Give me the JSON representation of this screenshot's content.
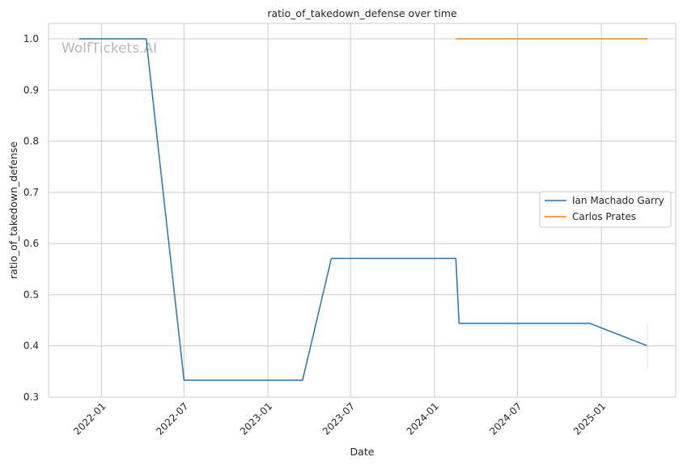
{
  "chart_data": {
    "type": "line",
    "title": "ratio_of_takedown_defense over time",
    "xlabel": "Date",
    "ylabel": "ratio_of_takedown_defense",
    "ylim": [
      0.3,
      1.03
    ],
    "xlim": [
      "2021-09-07",
      "2025-06-13"
    ],
    "grid": true,
    "legend_position": "center-right",
    "yticks": [
      0.3,
      0.4,
      0.5,
      0.6,
      0.7,
      0.8,
      0.9,
      1.0
    ],
    "ytick_labels": [
      "0.3",
      "0.4",
      "0.5",
      "0.6",
      "0.7",
      "0.8",
      "0.9",
      "1.0"
    ],
    "xticks": [
      "2022-01-01",
      "2022-07-01",
      "2023-01-01",
      "2023-07-01",
      "2024-01-01",
      "2024-07-01",
      "2025-01-01"
    ],
    "xtick_labels": [
      "2022-01",
      "2022-07",
      "2023-01",
      "2023-07",
      "2024-01",
      "2024-07",
      "2025-01"
    ],
    "series": [
      {
        "name": "Ian Machado Garry",
        "color": "#1f77b4",
        "x": [
          "2021-11-13",
          "2022-04-09",
          "2022-07-01",
          "2023-03-18",
          "2023-05-20",
          "2024-02-17",
          "2024-02-24",
          "2024-12-07",
          "2025-04-12"
        ],
        "y": [
          1.0,
          1.0,
          0.333,
          0.333,
          0.571,
          0.571,
          0.444,
          0.444,
          0.4
        ]
      },
      {
        "name": "Carlos Prates",
        "color": "#ff7f0e",
        "x": [
          "2024-02-17",
          "2025-04-12"
        ],
        "y": [
          1.0,
          1.0
        ]
      }
    ],
    "watermark": "WolfTickets.AI"
  }
}
